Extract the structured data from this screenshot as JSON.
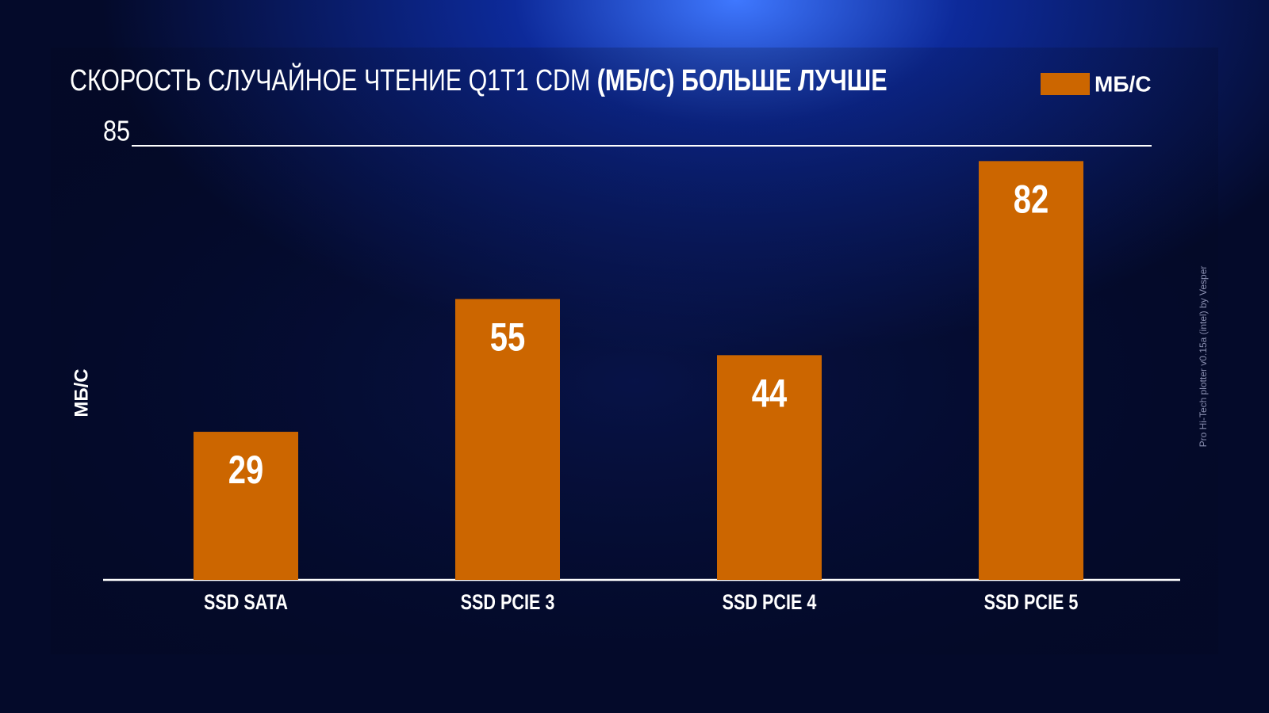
{
  "chart_data": {
    "type": "bar",
    "title": [
      "СКОРОСТЬ СЛУЧАЙНОЕ ЧТЕНИЕ Q1T1 CDM",
      "(МБ/С) БОЛЬШЕ ЛУЧШЕ"
    ],
    "y_label": "МБ/С",
    "categories": [
      "SSD SATA",
      "SSD PCIE 3",
      "SSD PCIE 4",
      "SSD PCIE 5"
    ],
    "series": [
      {
        "name": "МБ/С",
        "color": "#cc6600",
        "values": [
          29,
          55,
          44,
          82
        ]
      }
    ],
    "ylim": [
      0,
      85
    ],
    "yticks": [
      85
    ],
    "watermark": "Pro Hi-Tech plotter v0.15a (intel) by Vesper"
  }
}
